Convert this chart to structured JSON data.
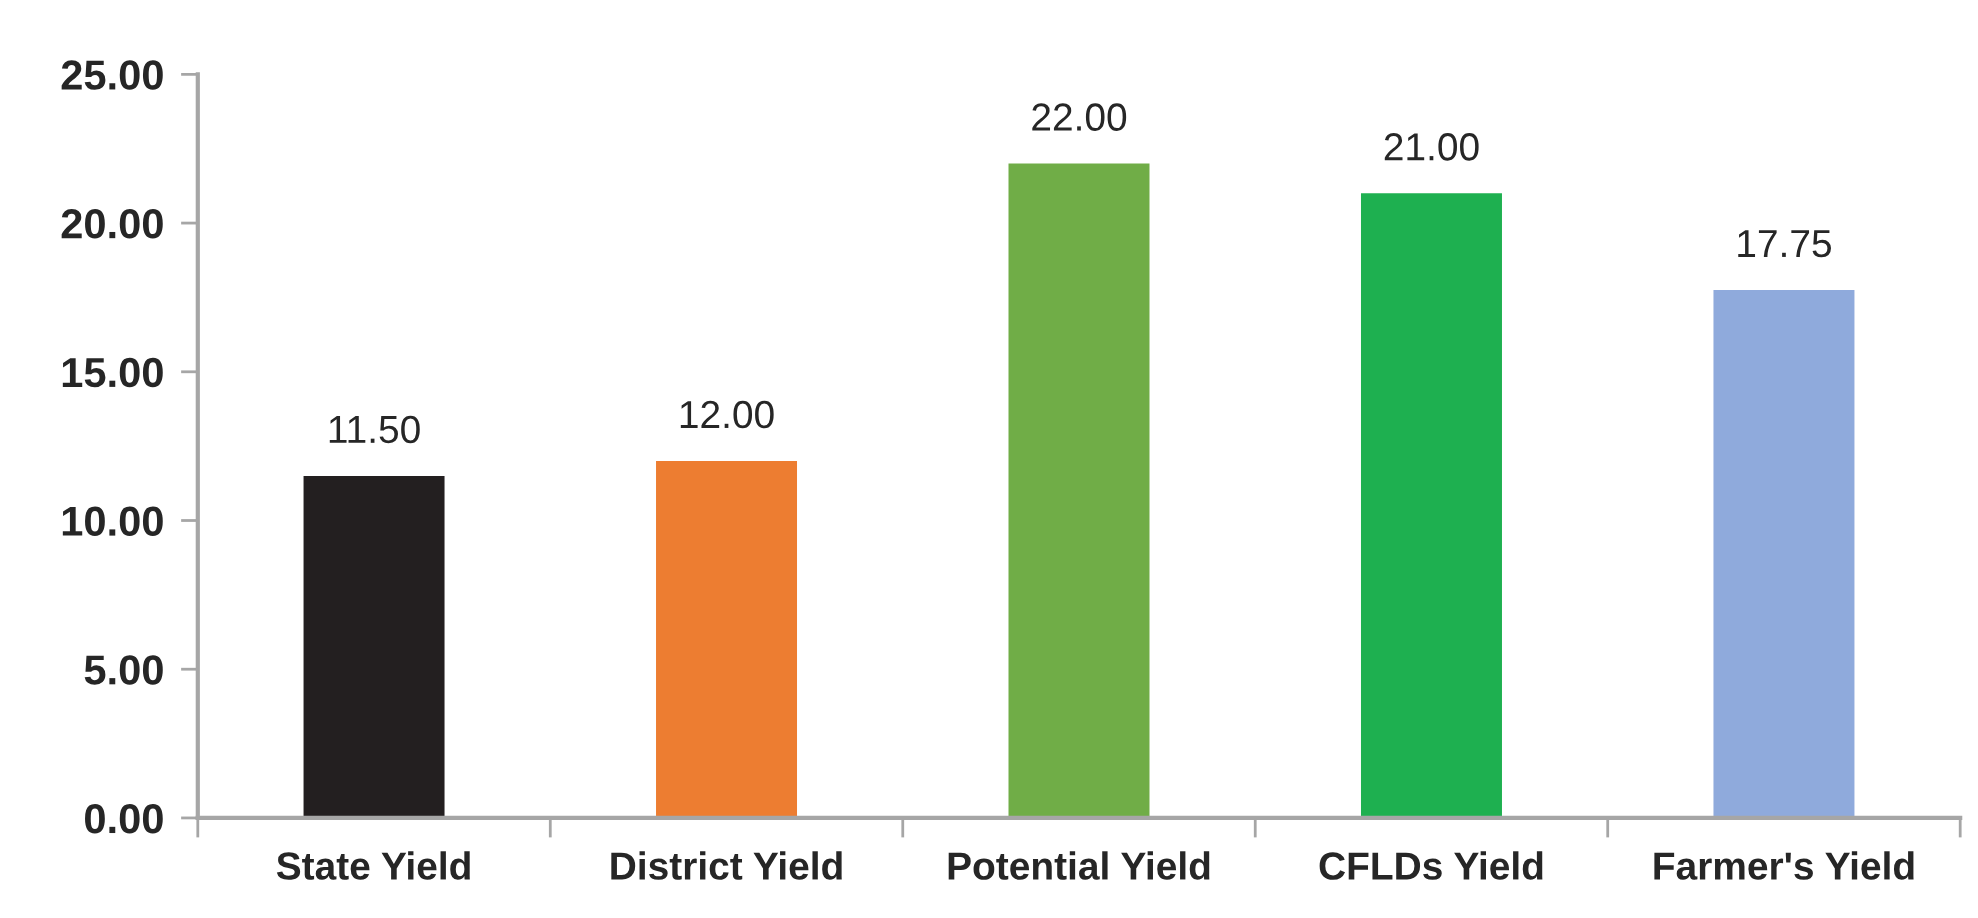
{
  "chart_data": {
    "type": "bar",
    "categories": [
      "State Yield",
      "District Yield",
      "Potential Yield",
      "CFLDs Yield",
      "Farmer's Yield"
    ],
    "values": [
      11.5,
      12.0,
      22.0,
      21.0,
      17.75
    ],
    "colors": [
      "#231f20",
      "#ed7d31",
      "#70ad47",
      "#1eb050",
      "#8faadc"
    ],
    "value_labels": [
      "11.50",
      "12.00",
      "22.00",
      "21.00",
      "17.75"
    ],
    "ylim": [
      0,
      25
    ],
    "yticks": [
      {
        "value": 0,
        "label": "0.00"
      },
      {
        "value": 5,
        "label": "5.00"
      },
      {
        "value": 10,
        "label": "10.00"
      },
      {
        "value": 15,
        "label": "15.00"
      },
      {
        "value": 20,
        "label": "20.00"
      },
      {
        "value": 25,
        "label": "25.00"
      }
    ],
    "grid": false,
    "legend": false
  }
}
